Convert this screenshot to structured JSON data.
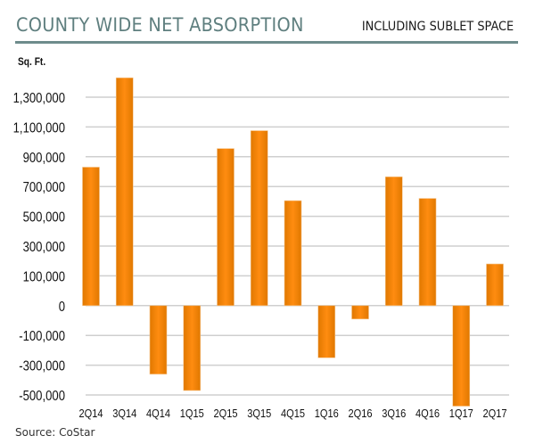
{
  "chart_data": {
    "type": "bar",
    "title": "COUNTY WIDE NET ABSORPTION",
    "subtitle": "INCLUDING SUBLET SPACE",
    "ylabel": "Sq. Ft.",
    "xlabel": "",
    "source": "Source: CoStar",
    "categories": [
      "2Q14",
      "3Q14",
      "4Q14",
      "1Q15",
      "2Q15",
      "3Q15",
      "4Q15",
      "1Q16",
      "2Q16",
      "3Q16",
      "4Q16",
      "1Q17",
      "2Q17"
    ],
    "values": [
      830000,
      1430000,
      -360000,
      -470000,
      955000,
      1075000,
      605000,
      -250000,
      -45000,
      765000,
      620000,
      -575000,
      180000
    ],
    "y_ticks": [
      {
        "label": "1,300,000",
        "value": 1300000
      },
      {
        "label": "1,100,000",
        "value": 1100000
      },
      {
        "label": "900,000",
        "value": 900000
      },
      {
        "label": "700,000",
        "value": 700000
      },
      {
        "label": "500,000",
        "value": 500000
      },
      {
        "label": "300,000",
        "value": 300000
      },
      {
        "label": "100,000",
        "value": 100000
      },
      {
        "label": "0",
        "value": 0
      },
      {
        "label": "-100,000",
        "value": -100000
      },
      {
        "label": "-300,000",
        "value": -300000
      },
      {
        "label": "-500,000",
        "value": -500000
      }
    ],
    "grid": true,
    "legend": "none",
    "bar_color": "#f08300"
  }
}
